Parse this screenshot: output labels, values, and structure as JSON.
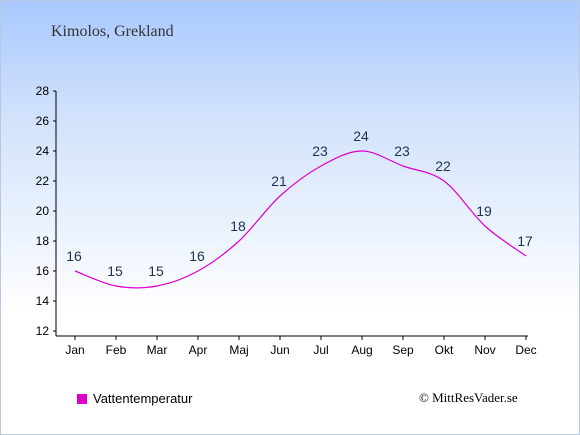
{
  "header": {
    "title": "Kimolos, Grekland"
  },
  "chart_data": {
    "type": "line",
    "categories": [
      "Jan",
      "Feb",
      "Mar",
      "Apr",
      "Maj",
      "Jun",
      "Jul",
      "Aug",
      "Sep",
      "Okt",
      "Nov",
      "Dec"
    ],
    "series": [
      {
        "name": "Vattentemperatur",
        "values": [
          16,
          15,
          15,
          16,
          18,
          21,
          23,
          24,
          23,
          22,
          19,
          17
        ],
        "color": "#dd00cc"
      }
    ],
    "yticks": [
      12,
      14,
      16,
      18,
      20,
      22,
      24,
      26,
      28
    ],
    "ylim": [
      12,
      28
    ],
    "grid": false,
    "legend_position": "bottom-left"
  },
  "legend": {
    "label": "Vattentemperatur",
    "color": "#dd00cc"
  },
  "footer": {
    "copyright": "© MittResVader.se"
  }
}
